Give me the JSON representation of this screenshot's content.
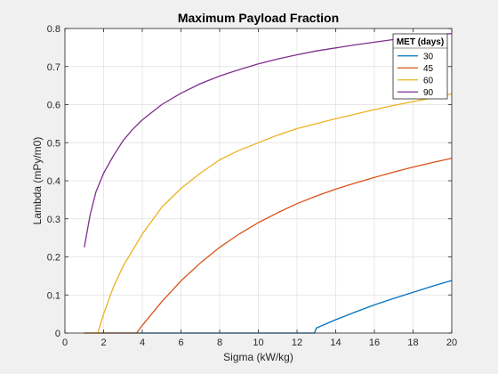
{
  "chart_data": {
    "type": "line",
    "title": "Maximum Payload Fraction",
    "xlabel": "Sigma (kW/kg)",
    "ylabel": "Lambda (mPy/m0)",
    "xlim": [
      0,
      20
    ],
    "ylim": [
      0,
      0.8
    ],
    "xticks": [
      "0",
      "2",
      "4",
      "6",
      "8",
      "10",
      "12",
      "14",
      "16",
      "18",
      "20"
    ],
    "yticks": [
      "0",
      "0.1",
      "0.2",
      "0.3",
      "0.4",
      "0.5",
      "0.6",
      "0.7",
      "0.8"
    ],
    "grid": true,
    "legend": {
      "title": "MET (days)",
      "position": "top-right"
    },
    "series": [
      {
        "name": "30",
        "color": "#0072BD",
        "x": [
          1,
          4,
          8,
          12,
          12.9,
          13.0,
          14,
          15,
          16,
          17,
          18,
          19,
          20
        ],
        "y": [
          0,
          0,
          0,
          0,
          0,
          0.013,
          0.035,
          0.055,
          0.074,
          0.091,
          0.107,
          0.123,
          0.138
        ]
      },
      {
        "name": "45",
        "color": "#D95319",
        "x": [
          1,
          3.7,
          4,
          5,
          6,
          7,
          8,
          9,
          10,
          11,
          12,
          13,
          14,
          15,
          16,
          17,
          18,
          19,
          20
        ],
        "y": [
          0,
          0,
          0.02,
          0.082,
          0.137,
          0.184,
          0.225,
          0.26,
          0.29,
          0.316,
          0.34,
          0.36,
          0.378,
          0.394,
          0.409,
          0.423,
          0.436,
          0.448,
          0.459
        ]
      },
      {
        "name": "60",
        "color": "#EDB120",
        "x": [
          1,
          1.7,
          2,
          2.5,
          3,
          4,
          5,
          6,
          7,
          8,
          9,
          10,
          11,
          12,
          13,
          14,
          15,
          16,
          17,
          18,
          19,
          20
        ],
        "y": [
          0,
          0,
          0.05,
          0.12,
          0.175,
          0.26,
          0.33,
          0.38,
          0.42,
          0.455,
          0.48,
          0.5,
          0.52,
          0.537,
          0.55,
          0.563,
          0.575,
          0.587,
          0.598,
          0.608,
          0.618,
          0.628
        ]
      },
      {
        "name": "90",
        "color": "#7E2F8E",
        "x": [
          1,
          1.3,
          1.6,
          2,
          2.5,
          3,
          3.5,
          4,
          5,
          6,
          7,
          8,
          9,
          10,
          11,
          12,
          13,
          14,
          15,
          16,
          17,
          18,
          19,
          20
        ],
        "y": [
          0.225,
          0.31,
          0.37,
          0.42,
          0.465,
          0.505,
          0.535,
          0.56,
          0.6,
          0.63,
          0.655,
          0.675,
          0.692,
          0.707,
          0.72,
          0.731,
          0.741,
          0.749,
          0.757,
          0.764,
          0.771,
          0.777,
          0.782,
          0.787
        ]
      }
    ]
  }
}
